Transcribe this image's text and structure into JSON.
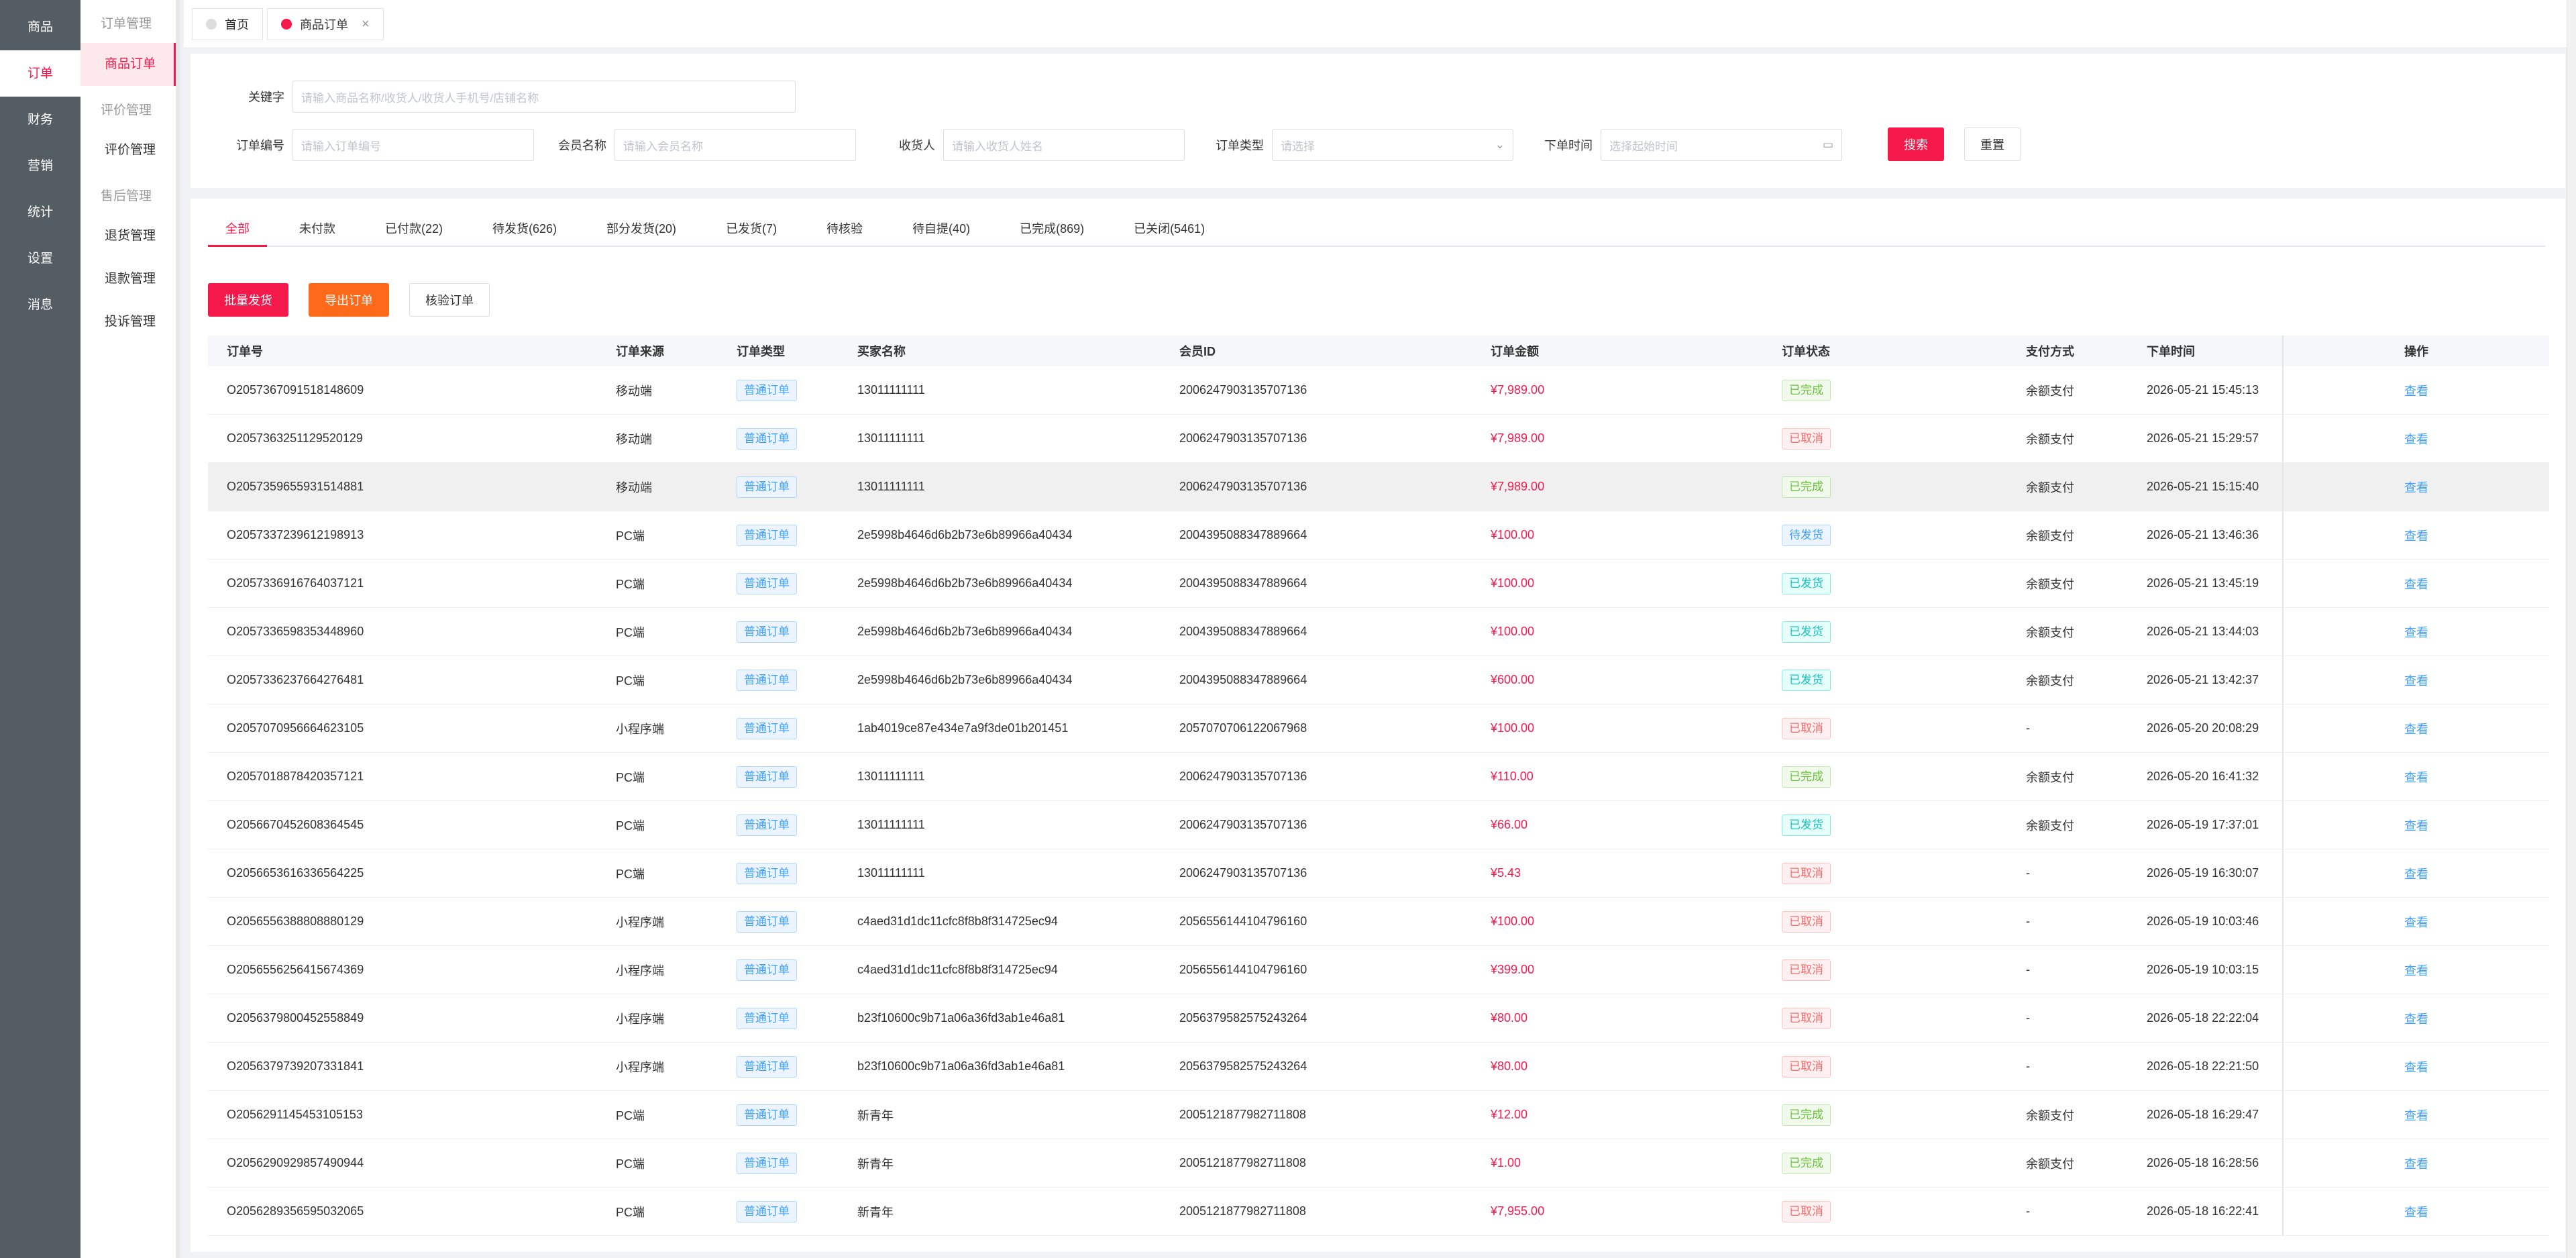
{
  "rail": [
    "商品",
    "订单",
    "财务",
    "营销",
    "统计",
    "设置",
    "消息"
  ],
  "submenu": {
    "groups": [
      {
        "title": "订单管理",
        "items": [
          "商品订单"
        ]
      },
      {
        "title": "评价管理",
        "items": [
          "评价管理"
        ]
      },
      {
        "title": "售后管理",
        "items": [
          "退货管理",
          "退款管理",
          "投诉管理"
        ]
      }
    ]
  },
  "tabs": {
    "home": "首页",
    "current": "商品订单",
    "close": "×"
  },
  "filter": {
    "keyword_label": "关键字",
    "keyword_ph": "请输入商品名称/收货人/收货人手机号/店铺名称",
    "order_no_label": "订单编号",
    "order_no_ph": "请输入订单编号",
    "member_label": "会员名称",
    "member_ph": "请输入会员名称",
    "receiver_label": "收货人",
    "receiver_ph": "请输入收货人姓名",
    "type_label": "订单类型",
    "type_ph": "请选择",
    "time_label": "下单时间",
    "time_ph": "选择起始时间",
    "search": "搜索",
    "reset": "重置"
  },
  "status_tabs": [
    "全部",
    "未付款",
    "已付款(22)",
    "待发货(626)",
    "部分发货(20)",
    "已发货(7)",
    "待核验",
    "待自提(40)",
    "已完成(869)",
    "已关闭(5461)"
  ],
  "actions": {
    "batch_ship": "批量发货",
    "export": "导出订单",
    "verify": "核验订单"
  },
  "columns": [
    "订单号",
    "订单来源",
    "订单类型",
    "买家名称",
    "会员ID",
    "订单金额",
    "订单状态",
    "支付方式",
    "下单时间",
    "操作"
  ],
  "rows": [
    {
      "no": "O2057367091518148609",
      "src": "移动端",
      "type": "普通订单",
      "buyer": "13011111111",
      "mid": "2006247903135707136",
      "amt": "¥7,989.00",
      "status": "已完成",
      "pay": "余额支付",
      "time": "2026-05-21 15:45:13",
      "op": "查看"
    },
    {
      "no": "O2057363251129520129",
      "src": "移动端",
      "type": "普通订单",
      "buyer": "13011111111",
      "mid": "2006247903135707136",
      "amt": "¥7,989.00",
      "status": "已取消",
      "pay": "余额支付",
      "time": "2026-05-21 15:29:57",
      "op": "查看"
    },
    {
      "no": "O2057359655931514881",
      "src": "移动端",
      "type": "普通订单",
      "buyer": "13011111111",
      "mid": "2006247903135707136",
      "amt": "¥7,989.00",
      "status": "已完成",
      "pay": "余额支付",
      "time": "2026-05-21 15:15:40",
      "op": "查看"
    },
    {
      "no": "O2057337239612198913",
      "src": "PC端",
      "type": "普通订单",
      "buyer": "2e5998b4646d6b2b73e6b89966a40434",
      "mid": "2004395088347889664",
      "amt": "¥100.00",
      "status": "待发货",
      "pay": "余额支付",
      "time": "2026-05-21 13:46:36",
      "op": "查看"
    },
    {
      "no": "O2057336916764037121",
      "src": "PC端",
      "type": "普通订单",
      "buyer": "2e5998b4646d6b2b73e6b89966a40434",
      "mid": "2004395088347889664",
      "amt": "¥100.00",
      "status": "已发货",
      "pay": "余额支付",
      "time": "2026-05-21 13:45:19",
      "op": "查看"
    },
    {
      "no": "O2057336598353448960",
      "src": "PC端",
      "type": "普通订单",
      "buyer": "2e5998b4646d6b2b73e6b89966a40434",
      "mid": "2004395088347889664",
      "amt": "¥100.00",
      "status": "已发货",
      "pay": "余额支付",
      "time": "2026-05-21 13:44:03",
      "op": "查看"
    },
    {
      "no": "O2057336237664276481",
      "src": "PC端",
      "type": "普通订单",
      "buyer": "2e5998b4646d6b2b73e6b89966a40434",
      "mid": "2004395088347889664",
      "amt": "¥600.00",
      "status": "已发货",
      "pay": "余额支付",
      "time": "2026-05-21 13:42:37",
      "op": "查看"
    },
    {
      "no": "O2057070956664623105",
      "src": "小程序端",
      "type": "普通订单",
      "buyer": "1ab4019ce87e434e7a9f3de01b201451",
      "mid": "2057070706122067968",
      "amt": "¥100.00",
      "status": "已取消",
      "pay": "-",
      "time": "2026-05-20 20:08:29",
      "op": "查看"
    },
    {
      "no": "O2057018878420357121",
      "src": "PC端",
      "type": "普通订单",
      "buyer": "13011111111",
      "mid": "2006247903135707136",
      "amt": "¥110.00",
      "status": "已完成",
      "pay": "余额支付",
      "time": "2026-05-20 16:41:32",
      "op": "查看"
    },
    {
      "no": "O2056670452608364545",
      "src": "PC端",
      "type": "普通订单",
      "buyer": "13011111111",
      "mid": "2006247903135707136",
      "amt": "¥66.00",
      "status": "已发货",
      "pay": "余额支付",
      "time": "2026-05-19 17:37:01",
      "op": "查看"
    },
    {
      "no": "O2056653616336564225",
      "src": "PC端",
      "type": "普通订单",
      "buyer": "13011111111",
      "mid": "2006247903135707136",
      "amt": "¥5.43",
      "status": "已取消",
      "pay": "-",
      "time": "2026-05-19 16:30:07",
      "op": "查看"
    },
    {
      "no": "O2056556388808880129",
      "src": "小程序端",
      "type": "普通订单",
      "buyer": "c4aed31d1dc11cfc8f8b8f314725ec94",
      "mid": "2056556144104796160",
      "amt": "¥100.00",
      "status": "已取消",
      "pay": "-",
      "time": "2026-05-19 10:03:46",
      "op": "查看"
    },
    {
      "no": "O2056556256415674369",
      "src": "小程序端",
      "type": "普通订单",
      "buyer": "c4aed31d1dc11cfc8f8b8f314725ec94",
      "mid": "2056556144104796160",
      "amt": "¥399.00",
      "status": "已取消",
      "pay": "-",
      "time": "2026-05-19 10:03:15",
      "op": "查看"
    },
    {
      "no": "O2056379800452558849",
      "src": "小程序端",
      "type": "普通订单",
      "buyer": "b23f10600c9b71a06a36fd3ab1e46a81",
      "mid": "2056379582575243264",
      "amt": "¥80.00",
      "status": "已取消",
      "pay": "-",
      "time": "2026-05-18 22:22:04",
      "op": "查看"
    },
    {
      "no": "O2056379739207331841",
      "src": "小程序端",
      "type": "普通订单",
      "buyer": "b23f10600c9b71a06a36fd3ab1e46a81",
      "mid": "2056379582575243264",
      "amt": "¥80.00",
      "status": "已取消",
      "pay": "-",
      "time": "2026-05-18 22:21:50",
      "op": "查看"
    },
    {
      "no": "O2056291145453105153",
      "src": "PC端",
      "type": "普通订单",
      "buyer": "新青年",
      "mid": "2005121877982711808",
      "amt": "¥12.00",
      "status": "已完成",
      "pay": "余额支付",
      "time": "2026-05-18 16:29:47",
      "op": "查看"
    },
    {
      "no": "O2056290929857490944",
      "src": "PC端",
      "type": "普通订单",
      "buyer": "新青年",
      "mid": "2005121877982711808",
      "amt": "¥1.00",
      "status": "已完成",
      "pay": "余额支付",
      "time": "2026-05-18 16:28:56",
      "op": "查看"
    },
    {
      "no": "O2056289356595032065",
      "src": "PC端",
      "type": "普通订单",
      "buyer": "新青年",
      "mid": "2005121877982711808",
      "amt": "¥7,955.00",
      "status": "已取消",
      "pay": "-",
      "time": "2026-05-18 16:22:41",
      "op": "查看"
    }
  ]
}
